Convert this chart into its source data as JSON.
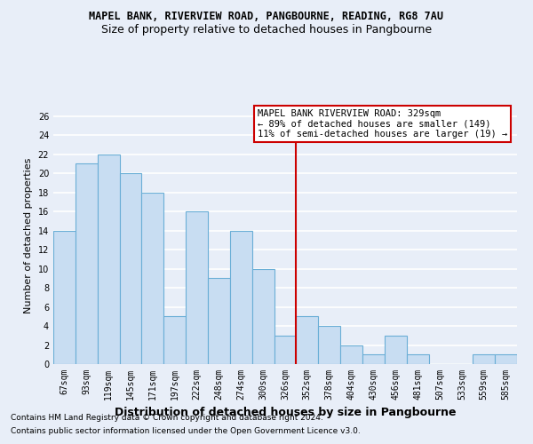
{
  "title1": "MAPEL BANK, RIVERVIEW ROAD, PANGBOURNE, READING, RG8 7AU",
  "title2": "Size of property relative to detached houses in Pangbourne",
  "xlabel": "Distribution of detached houses by size in Pangbourne",
  "ylabel": "Number of detached properties",
  "categories": [
    "67sqm",
    "93sqm",
    "119sqm",
    "145sqm",
    "171sqm",
    "197sqm",
    "222sqm",
    "248sqm",
    "274sqm",
    "300sqm",
    "326sqm",
    "352sqm",
    "378sqm",
    "404sqm",
    "430sqm",
    "456sqm",
    "481sqm",
    "507sqm",
    "533sqm",
    "559sqm",
    "585sqm"
  ],
  "values": [
    14,
    21,
    22,
    20,
    18,
    5,
    16,
    9,
    14,
    10,
    3,
    5,
    4,
    2,
    1,
    3,
    1,
    0,
    0,
    1,
    1
  ],
  "bar_color": "#c8ddf2",
  "bar_edge_color": "#6aaed6",
  "vline_x": 10.5,
  "vline_color": "#cc0000",
  "annotation_title": "MAPEL BANK RIVERVIEW ROAD: 329sqm",
  "annotation_line2": "← 89% of detached houses are smaller (149)",
  "annotation_line3": "11% of semi-detached houses are larger (19) →",
  "ylim": [
    0,
    27
  ],
  "yticks": [
    0,
    2,
    4,
    6,
    8,
    10,
    12,
    14,
    16,
    18,
    20,
    22,
    24,
    26
  ],
  "footnote1": "Contains HM Land Registry data © Crown copyright and database right 2024.",
  "footnote2": "Contains public sector information licensed under the Open Government Licence v3.0.",
  "bg_color": "#e8eef8",
  "fig_bg_color": "#e8eef8",
  "grid_color": "#ffffff",
  "title1_fontsize": 8.5,
  "title2_fontsize": 9,
  "xlabel_fontsize": 9,
  "ylabel_fontsize": 8,
  "tick_fontsize": 7,
  "footnote_fontsize": 6.5,
  "annot_fontsize": 7.5
}
